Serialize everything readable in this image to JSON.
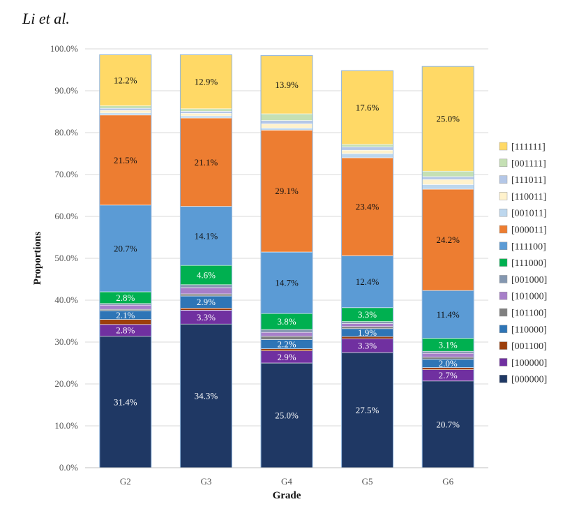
{
  "header": {
    "authors": "Li et al."
  },
  "chart_data": {
    "type": "bar",
    "stacked": true,
    "title": "",
    "xlabel": "Grade",
    "ylabel": "Proportions",
    "ylim": [
      0,
      100
    ],
    "yticks": [
      "0.0%",
      "10.0%",
      "20.0%",
      "30.0%",
      "40.0%",
      "50.0%",
      "60.0%",
      "70.0%",
      "80.0%",
      "90.0%",
      "100.0%"
    ],
    "categories": [
      "G2",
      "G3",
      "G4",
      "G5",
      "G6"
    ],
    "legend_position": "right",
    "series": [
      {
        "name": "[000000]",
        "color": "#1f3864",
        "text_color": "#ffffff",
        "values": [
          31.4,
          34.3,
          25.0,
          27.5,
          20.7
        ],
        "labels": [
          "31.4%",
          "34.3%",
          "25.0%",
          "27.5%",
          "20.7%"
        ]
      },
      {
        "name": "[100000]",
        "color": "#7030a0",
        "text_color": "#ffffff",
        "values": [
          2.8,
          3.3,
          2.9,
          3.3,
          2.7
        ],
        "labels": [
          "2.8%",
          "3.3%",
          "2.9%",
          "3.3%",
          "2.7%"
        ]
      },
      {
        "name": "[001100]",
        "color": "#9c3f0c",
        "text_color": "#ffffff",
        "values": [
          1.2,
          0.5,
          0.5,
          0.5,
          0.5
        ],
        "labels": [
          "",
          "",
          "",
          "",
          ""
        ]
      },
      {
        "name": "[110000]",
        "color": "#2e75b6",
        "text_color": "#ffffff",
        "values": [
          2.1,
          2.9,
          2.2,
          1.9,
          2.0
        ],
        "labels": [
          "2.1%",
          "2.9%",
          "2.2%",
          "1.9%",
          "2.0%"
        ]
      },
      {
        "name": "[101100]",
        "color": "#7f7f7f",
        "text_color": "#ffffff",
        "values": [
          0.3,
          0.5,
          0.8,
          0.5,
          0.5
        ],
        "labels": [
          "",
          "",
          "",
          "",
          ""
        ]
      },
      {
        "name": "[101000]",
        "color": "#a77fc9",
        "text_color": "#ffffff",
        "values": [
          1.0,
          1.5,
          0.9,
          0.7,
          0.9
        ],
        "labels": [
          "",
          "",
          "",
          "",
          ""
        ]
      },
      {
        "name": "[001000]",
        "color": "#8497b0",
        "text_color": "#ffffff",
        "values": [
          0.4,
          0.7,
          0.7,
          0.5,
          0.5
        ],
        "labels": [
          "",
          "",
          "",
          "",
          ""
        ]
      },
      {
        "name": "[111000]",
        "color": "#00b050",
        "text_color": "#ffffff",
        "values": [
          2.8,
          4.6,
          3.8,
          3.3,
          3.1
        ],
        "labels": [
          "2.8%",
          "4.6%",
          "3.8%",
          "3.3%",
          "3.1%"
        ]
      },
      {
        "name": "[111100]",
        "color": "#5b9bd5",
        "text_color": "#111111",
        "values": [
          20.7,
          14.1,
          14.7,
          12.4,
          11.4
        ],
        "labels": [
          "20.7%",
          "14.1%",
          "14.7%",
          "12.4%",
          "11.4%"
        ]
      },
      {
        "name": "[000011]",
        "color": "#ed7d31",
        "text_color": "#111111",
        "values": [
          21.5,
          21.1,
          29.1,
          23.4,
          24.2
        ],
        "labels": [
          "21.5%",
          "21.1%",
          "29.1%",
          "23.4%",
          "24.2%"
        ]
      },
      {
        "name": "[001011]",
        "color": "#bdd7ee",
        "text_color": "#111111",
        "values": [
          0.5,
          0.5,
          0.5,
          1.0,
          1.1
        ],
        "labels": [
          "",
          "",
          "",
          "",
          ""
        ]
      },
      {
        "name": "[110011]",
        "color": "#fff2cc",
        "text_color": "#111111",
        "values": [
          0.6,
          0.6,
          1.0,
          0.8,
          1.2
        ],
        "labels": [
          "",
          "",
          "",
          "",
          ""
        ]
      },
      {
        "name": "[111011]",
        "color": "#b4c7e7",
        "text_color": "#111111",
        "values": [
          0.5,
          0.5,
          0.8,
          0.8,
          0.7
        ],
        "labels": [
          "",
          "",
          "",
          "",
          ""
        ]
      },
      {
        "name": "[001111]",
        "color": "#c5e0b4",
        "text_color": "#111111",
        "values": [
          0.6,
          0.6,
          1.6,
          0.6,
          1.3
        ],
        "labels": [
          "",
          "",
          "",
          "",
          ""
        ]
      },
      {
        "name": "[111111]",
        "color": "#ffd966",
        "text_color": "#111111",
        "values": [
          12.2,
          12.9,
          13.9,
          17.6,
          25.0
        ],
        "labels": [
          "12.2%",
          "12.9%",
          "13.9%",
          "17.6%",
          "25.0%"
        ]
      }
    ]
  }
}
